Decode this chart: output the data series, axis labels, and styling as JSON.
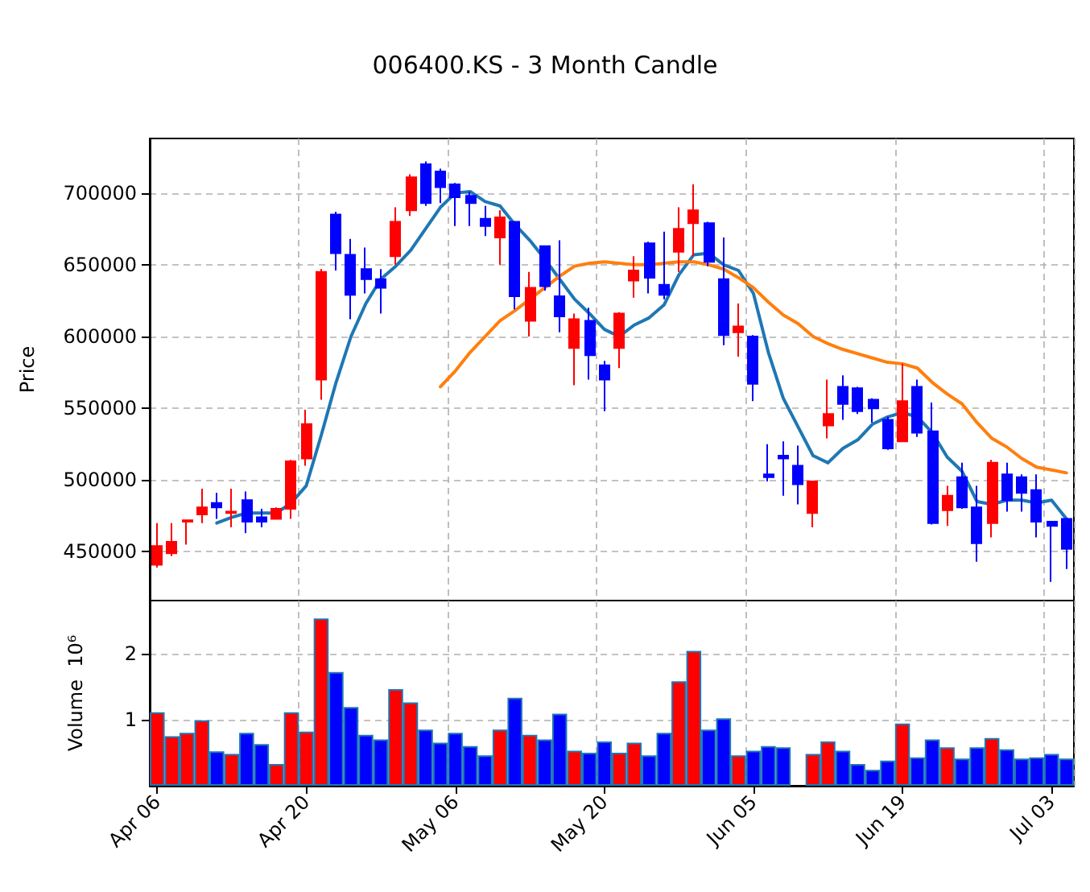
{
  "chart_data": [
    {
      "type": "candlestick",
      "title": "006400.KS - 3 Month Candle",
      "ylabel": "Price",
      "ylim": [
        416000,
        738000
      ],
      "yticks": [
        450000,
        500000,
        550000,
        600000,
        650000,
        700000
      ],
      "grid": true,
      "tick_labels": "y",
      "series": [
        {
          "type": "candlestick",
          "ohlc": [
            [
              441000,
              470000,
              439000,
              454000
            ],
            [
              449000,
              470000,
              447000,
              457000
            ],
            [
              471000,
              472000,
              455000,
              472000
            ],
            [
              476000,
              494000,
              470000,
              481000
            ],
            [
              484000,
              491000,
              473000,
              481000
            ],
            [
              477000,
              494000,
              467000,
              478000
            ],
            [
              486000,
              492000,
              463000,
              471000
            ],
            [
              474000,
              480000,
              467000,
              471000
            ],
            [
              473000,
              481000,
              473000,
              480000
            ],
            [
              480000,
              514000,
              473000,
              513000
            ],
            [
              515000,
              549000,
              510000,
              539000
            ],
            [
              570000,
              647000,
              556000,
              645000
            ],
            [
              685000,
              687000,
              646000,
              658000
            ],
            [
              657000,
              668000,
              612000,
              629000
            ],
            [
              647000,
              662000,
              630000,
              640000
            ],
            [
              640000,
              647000,
              616000,
              634000
            ],
            [
              656000,
              690000,
              650000,
              680000
            ],
            [
              688000,
              713000,
              684000,
              711000
            ],
            [
              720000,
              722000,
              691000,
              693000
            ],
            [
              715000,
              717000,
              693000,
              704000
            ],
            [
              706000,
              707000,
              677000,
              697000
            ],
            [
              698000,
              701000,
              677000,
              693000
            ],
            [
              682000,
              691000,
              670000,
              677000
            ],
            [
              669000,
              688000,
              650000,
              683000
            ],
            [
              680000,
              680000,
              619000,
              628000
            ],
            [
              611000,
              645000,
              600000,
              634000
            ],
            [
              663000,
              663000,
              632000,
              635000
            ],
            [
              628000,
              667000,
              603000,
              614000
            ],
            [
              592000,
              616000,
              566000,
              612000
            ],
            [
              611000,
              620000,
              570000,
              587000
            ],
            [
              580000,
              583000,
              548000,
              570000
            ],
            [
              592000,
              617000,
              578000,
              616000
            ],
            [
              639000,
              656000,
              627000,
              646000
            ],
            [
              665000,
              666000,
              630000,
              641000
            ],
            [
              636000,
              673000,
              626000,
              629000
            ],
            [
              659000,
              690000,
              645000,
              675000
            ],
            [
              679000,
              706000,
              656000,
              688000
            ],
            [
              679000,
              680000,
              649000,
              652000
            ],
            [
              640000,
              669000,
              594000,
              601000
            ],
            [
              603000,
              623000,
              586000,
              607000
            ],
            [
              600000,
              601000,
              555000,
              567000
            ],
            [
              504000,
              525000,
              499000,
              502000
            ],
            [
              517000,
              527000,
              489000,
              515000
            ],
            [
              510000,
              524000,
              483000,
              497000
            ],
            [
              477000,
              499000,
              467000,
              499000
            ],
            [
              538000,
              570000,
              529000,
              546000
            ],
            [
              565000,
              573000,
              542000,
              553000
            ],
            [
              564000,
              565000,
              546000,
              548000
            ],
            [
              556000,
              557000,
              540000,
              550000
            ],
            [
              542000,
              544000,
              521000,
              522000
            ],
            [
              527000,
              581000,
              527000,
              555000
            ],
            [
              565000,
              570000,
              530000,
              533000
            ],
            [
              534000,
              554000,
              469000,
              470000
            ],
            [
              479000,
              496000,
              468000,
              489000
            ],
            [
              502000,
              512000,
              480000,
              481000
            ],
            [
              481000,
              496000,
              443000,
              456000
            ],
            [
              470000,
              514000,
              460000,
              512000
            ],
            [
              504000,
              512000,
              478000,
              486000
            ],
            [
              502000,
              504000,
              478000,
              491000
            ],
            [
              493000,
              504000,
              460000,
              471000
            ],
            [
              471000,
              471000,
              429000,
              468000
            ],
            [
              473000,
              473000,
              438000,
              452000
            ]
          ],
          "colors": [
            "#ff0000",
            "#ff0000",
            "#ff0000",
            "#ff0000",
            "#0000ff",
            "#ff0000",
            "#0000ff",
            "#0000ff",
            "#ff0000",
            "#ff0000",
            "#ff0000",
            "#ff0000",
            "#0000ff",
            "#0000ff",
            "#0000ff",
            "#0000ff",
            "#ff0000",
            "#ff0000",
            "#0000ff",
            "#0000ff",
            "#0000ff",
            "#0000ff",
            "#0000ff",
            "#ff0000",
            "#0000ff",
            "#ff0000",
            "#0000ff",
            "#0000ff",
            "#ff0000",
            "#0000ff",
            "#0000ff",
            "#ff0000",
            "#ff0000",
            "#0000ff",
            "#0000ff",
            "#ff0000",
            "#ff0000",
            "#0000ff",
            "#0000ff",
            "#ff0000",
            "#0000ff",
            "#0000ff",
            "#0000ff",
            "#0000ff",
            "#ff0000",
            "#ff0000",
            "#0000ff",
            "#0000ff",
            "#0000ff",
            "#0000ff",
            "#ff0000",
            "#0000ff",
            "#0000ff",
            "#ff0000",
            "#0000ff",
            "#0000ff",
            "#ff0000",
            "#0000ff",
            "#0000ff",
            "#0000ff",
            "#0000ff",
            "#0000ff"
          ]
        },
        {
          "type": "line",
          "color": "#1f77b4",
          "values": [
            null,
            null,
            null,
            null,
            470000,
            474000,
            477000,
            477000,
            477000,
            484000,
            496000,
            531000,
            568000,
            600000,
            623000,
            640000,
            649000,
            660000,
            675000,
            690000,
            700000,
            701000,
            694000,
            691000,
            678000,
            667000,
            654000,
            640000,
            626000,
            616000,
            605000,
            600000,
            608000,
            613000,
            622000,
            643000,
            657000,
            658000,
            650000,
            646000,
            630000,
            589000,
            557000,
            537000,
            517000,
            512000,
            522000,
            528000,
            539000,
            544000,
            547000,
            544000,
            533000,
            516000,
            506000,
            485000,
            483000,
            486000,
            486000,
            484000,
            486000,
            473000
          ]
        },
        {
          "type": "line",
          "color": "#ff7f0e",
          "values": [
            null,
            null,
            null,
            null,
            null,
            null,
            null,
            null,
            null,
            null,
            null,
            null,
            null,
            null,
            null,
            null,
            null,
            null,
            null,
            565000,
            576000,
            589000,
            600000,
            611000,
            618000,
            626000,
            634000,
            642000,
            649000,
            651000,
            652000,
            651000,
            650000,
            650000,
            651000,
            652000,
            652000,
            650000,
            647000,
            641000,
            634000,
            624000,
            615000,
            609000,
            600000,
            595000,
            591000,
            588000,
            585000,
            582000,
            581000,
            578000,
            568000,
            560000,
            553000,
            540000,
            529000,
            523000,
            515000,
            509000,
            507000,
            505000
          ]
        }
      ]
    },
    {
      "type": "bar",
      "ylabel": "Volume  10⁶",
      "categories": [
        "Apr 06",
        null,
        null,
        null,
        null,
        null,
        null,
        null,
        null,
        null,
        "Apr 20",
        null,
        null,
        null,
        null,
        null,
        null,
        null,
        null,
        null,
        "May 06",
        null,
        null,
        null,
        null,
        null,
        null,
        null,
        null,
        null,
        "May 20",
        null,
        null,
        null,
        null,
        null,
        null,
        null,
        null,
        null,
        "Jun 05",
        null,
        null,
        null,
        null,
        null,
        null,
        null,
        null,
        null,
        "Jun 19",
        null,
        null,
        null,
        null,
        null,
        null,
        null,
        null,
        null,
        "Jul 03",
        null
      ],
      "ylim": [
        0,
        2.8
      ],
      "yticks": [
        1,
        2
      ],
      "grid": true,
      "series": [
        {
          "values": [
            1.11,
            0.75,
            0.8,
            0.99,
            0.52,
            0.48,
            0.8,
            0.63,
            0.33,
            1.11,
            0.82,
            2.53,
            1.72,
            1.19,
            0.77,
            0.7,
            1.46,
            1.26,
            0.85,
            0.65,
            0.8,
            0.6,
            0.46,
            0.85,
            1.33,
            0.77,
            0.7,
            1.09,
            0.53,
            0.5,
            0.67,
            0.5,
            0.65,
            0.46,
            0.8,
            1.58,
            2.04,
            0.85,
            1.02,
            0.46,
            0.53,
            0.6,
            0.58,
            null,
            0.48,
            0.67,
            0.53,
            0.33,
            0.24,
            0.38,
            0.94,
            0.43,
            0.7,
            0.58,
            0.41,
            0.58,
            0.72,
            0.55,
            0.41,
            0.43,
            0.48,
            0.41
          ],
          "colors": [
            "#ff0000",
            "#ff0000",
            "#ff0000",
            "#ff0000",
            "#0000ff",
            "#ff0000",
            "#0000ff",
            "#0000ff",
            "#ff0000",
            "#ff0000",
            "#ff0000",
            "#ff0000",
            "#0000ff",
            "#0000ff",
            "#0000ff",
            "#0000ff",
            "#ff0000",
            "#ff0000",
            "#0000ff",
            "#0000ff",
            "#0000ff",
            "#0000ff",
            "#0000ff",
            "#ff0000",
            "#0000ff",
            "#ff0000",
            "#0000ff",
            "#0000ff",
            "#ff0000",
            "#0000ff",
            "#0000ff",
            "#ff0000",
            "#ff0000",
            "#0000ff",
            "#0000ff",
            "#ff0000",
            "#ff0000",
            "#0000ff",
            "#0000ff",
            "#ff0000",
            "#0000ff",
            "#0000ff",
            "#0000ff",
            "#0000ff",
            "#ff0000",
            "#ff0000",
            "#0000ff",
            "#0000ff",
            "#0000ff",
            "#0000ff",
            "#ff0000",
            "#0000ff",
            "#0000ff",
            "#ff0000",
            "#0000ff",
            "#0000ff",
            "#ff0000",
            "#0000ff",
            "#0000ff",
            "#0000ff",
            "#0000ff",
            "#0000ff"
          ]
        }
      ]
    }
  ]
}
